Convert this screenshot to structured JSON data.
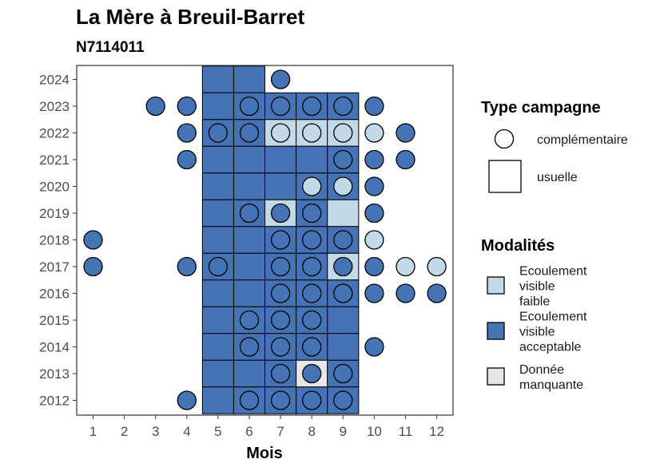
{
  "chart_data": {
    "type": "heatmap",
    "title": "La Mère à Breuil-Barret",
    "subtitle": "N7114011",
    "xlabel": "Mois",
    "ylabel": "",
    "x_ticks": [
      "1",
      "2",
      "3",
      "4",
      "5",
      "6",
      "7",
      "8",
      "9",
      "10",
      "11",
      "12"
    ],
    "y_ticks": [
      "2012",
      "2013",
      "2014",
      "2015",
      "2016",
      "2017",
      "2018",
      "2019",
      "2020",
      "2021",
      "2022",
      "2023",
      "2024"
    ],
    "colors": {
      "faible": "#c1d9e9",
      "acceptable": "#4474b6",
      "manquante": "#e6e6e6"
    },
    "legend_campagne": {
      "title": "Type campagne",
      "items": [
        {
          "shape": "circle",
          "label": "complémentaire"
        },
        {
          "shape": "square",
          "label": "usuelle"
        }
      ]
    },
    "legend_modalites": {
      "title": "Modalités",
      "items": [
        {
          "key": "faible",
          "label": [
            "Ecoulement",
            "visible",
            "faible"
          ]
        },
        {
          "key": "acceptable",
          "label": [
            "Ecoulement",
            "visible",
            "acceptable"
          ]
        },
        {
          "key": "manquante",
          "label": [
            "Donnée",
            "manquante"
          ]
        }
      ]
    },
    "usuelle": [
      {
        "year": 2024,
        "month": 5,
        "m": "acceptable"
      },
      {
        "year": 2024,
        "month": 6,
        "m": "acceptable"
      },
      {
        "year": 2023,
        "month": 5,
        "m": "acceptable"
      },
      {
        "year": 2023,
        "month": 6,
        "m": "acceptable"
      },
      {
        "year": 2023,
        "month": 7,
        "m": "acceptable"
      },
      {
        "year": 2023,
        "month": 8,
        "m": "acceptable"
      },
      {
        "year": 2023,
        "month": 9,
        "m": "acceptable"
      },
      {
        "year": 2022,
        "month": 5,
        "m": "acceptable"
      },
      {
        "year": 2022,
        "month": 6,
        "m": "acceptable"
      },
      {
        "year": 2022,
        "month": 7,
        "m": "faible"
      },
      {
        "year": 2022,
        "month": 8,
        "m": "faible"
      },
      {
        "year": 2022,
        "month": 9,
        "m": "faible"
      },
      {
        "year": 2021,
        "month": 5,
        "m": "acceptable"
      },
      {
        "year": 2021,
        "month": 6,
        "m": "acceptable"
      },
      {
        "year": 2021,
        "month": 7,
        "m": "acceptable"
      },
      {
        "year": 2021,
        "month": 8,
        "m": "acceptable"
      },
      {
        "year": 2021,
        "month": 9,
        "m": "acceptable"
      },
      {
        "year": 2020,
        "month": 5,
        "m": "acceptable"
      },
      {
        "year": 2020,
        "month": 6,
        "m": "acceptable"
      },
      {
        "year": 2020,
        "month": 7,
        "m": "acceptable"
      },
      {
        "year": 2020,
        "month": 8,
        "m": "acceptable"
      },
      {
        "year": 2020,
        "month": 9,
        "m": "acceptable"
      },
      {
        "year": 2019,
        "month": 5,
        "m": "acceptable"
      },
      {
        "year": 2019,
        "month": 6,
        "m": "acceptable"
      },
      {
        "year": 2019,
        "month": 7,
        "m": "faible"
      },
      {
        "year": 2019,
        "month": 8,
        "m": "acceptable"
      },
      {
        "year": 2019,
        "month": 9,
        "m": "faible"
      },
      {
        "year": 2018,
        "month": 5,
        "m": "acceptable"
      },
      {
        "year": 2018,
        "month": 6,
        "m": "acceptable"
      },
      {
        "year": 2018,
        "month": 7,
        "m": "acceptable"
      },
      {
        "year": 2018,
        "month": 8,
        "m": "acceptable"
      },
      {
        "year": 2018,
        "month": 9,
        "m": "acceptable"
      },
      {
        "year": 2017,
        "month": 5,
        "m": "acceptable"
      },
      {
        "year": 2017,
        "month": 6,
        "m": "acceptable"
      },
      {
        "year": 2017,
        "month": 7,
        "m": "acceptable"
      },
      {
        "year": 2017,
        "month": 8,
        "m": "acceptable"
      },
      {
        "year": 2017,
        "month": 9,
        "m": "faible"
      },
      {
        "year": 2016,
        "month": 5,
        "m": "acceptable"
      },
      {
        "year": 2016,
        "month": 6,
        "m": "acceptable"
      },
      {
        "year": 2016,
        "month": 7,
        "m": "acceptable"
      },
      {
        "year": 2016,
        "month": 8,
        "m": "acceptable"
      },
      {
        "year": 2016,
        "month": 9,
        "m": "acceptable"
      },
      {
        "year": 2015,
        "month": 5,
        "m": "acceptable"
      },
      {
        "year": 2015,
        "month": 6,
        "m": "acceptable"
      },
      {
        "year": 2015,
        "month": 7,
        "m": "acceptable"
      },
      {
        "year": 2015,
        "month": 8,
        "m": "acceptable"
      },
      {
        "year": 2015,
        "month": 9,
        "m": "acceptable"
      },
      {
        "year": 2014,
        "month": 5,
        "m": "acceptable"
      },
      {
        "year": 2014,
        "month": 6,
        "m": "acceptable"
      },
      {
        "year": 2014,
        "month": 7,
        "m": "acceptable"
      },
      {
        "year": 2014,
        "month": 8,
        "m": "acceptable"
      },
      {
        "year": 2014,
        "month": 9,
        "m": "acceptable"
      },
      {
        "year": 2013,
        "month": 5,
        "m": "acceptable"
      },
      {
        "year": 2013,
        "month": 6,
        "m": "acceptable"
      },
      {
        "year": 2013,
        "month": 7,
        "m": "acceptable"
      },
      {
        "year": 2013,
        "month": 8,
        "m": "manquante"
      },
      {
        "year": 2013,
        "month": 9,
        "m": "acceptable"
      },
      {
        "year": 2012,
        "month": 5,
        "m": "acceptable"
      },
      {
        "year": 2012,
        "month": 6,
        "m": "acceptable"
      },
      {
        "year": 2012,
        "month": 7,
        "m": "acceptable"
      },
      {
        "year": 2012,
        "month": 8,
        "m": "acceptable"
      },
      {
        "year": 2012,
        "month": 9,
        "m": "acceptable"
      }
    ],
    "complementaire": [
      {
        "year": 2024,
        "month": 7,
        "m": "acceptable"
      },
      {
        "year": 2023,
        "month": 3,
        "m": "acceptable"
      },
      {
        "year": 2023,
        "month": 4,
        "m": "acceptable"
      },
      {
        "year": 2023,
        "month": 6,
        "m": "acceptable"
      },
      {
        "year": 2023,
        "month": 7,
        "m": "acceptable"
      },
      {
        "year": 2023,
        "month": 8,
        "m": "acceptable"
      },
      {
        "year": 2023,
        "month": 9,
        "m": "acceptable"
      },
      {
        "year": 2023,
        "month": 10,
        "m": "acceptable"
      },
      {
        "year": 2022,
        "month": 4,
        "m": "acceptable"
      },
      {
        "year": 2022,
        "month": 5,
        "m": "acceptable"
      },
      {
        "year": 2022,
        "month": 6,
        "m": "acceptable"
      },
      {
        "year": 2022,
        "month": 7,
        "m": "faible"
      },
      {
        "year": 2022,
        "month": 8,
        "m": "faible"
      },
      {
        "year": 2022,
        "month": 9,
        "m": "faible"
      },
      {
        "year": 2022,
        "month": 10,
        "m": "faible"
      },
      {
        "year": 2022,
        "month": 11,
        "m": "acceptable"
      },
      {
        "year": 2021,
        "month": 4,
        "m": "acceptable"
      },
      {
        "year": 2021,
        "month": 9,
        "m": "acceptable"
      },
      {
        "year": 2021,
        "month": 10,
        "m": "acceptable"
      },
      {
        "year": 2021,
        "month": 11,
        "m": "acceptable"
      },
      {
        "year": 2020,
        "month": 8,
        "m": "faible"
      },
      {
        "year": 2020,
        "month": 9,
        "m": "faible"
      },
      {
        "year": 2020,
        "month": 10,
        "m": "acceptable"
      },
      {
        "year": 2019,
        "month": 6,
        "m": "acceptable"
      },
      {
        "year": 2019,
        "month": 7,
        "m": "acceptable"
      },
      {
        "year": 2019,
        "month": 8,
        "m": "acceptable"
      },
      {
        "year": 2019,
        "month": 10,
        "m": "acceptable"
      },
      {
        "year": 2018,
        "month": 1,
        "m": "acceptable"
      },
      {
        "year": 2018,
        "month": 7,
        "m": "acceptable"
      },
      {
        "year": 2018,
        "month": 8,
        "m": "acceptable"
      },
      {
        "year": 2018,
        "month": 9,
        "m": "acceptable"
      },
      {
        "year": 2018,
        "month": 10,
        "m": "faible"
      },
      {
        "year": 2017,
        "month": 1,
        "m": "acceptable"
      },
      {
        "year": 2017,
        "month": 4,
        "m": "acceptable"
      },
      {
        "year": 2017,
        "month": 5,
        "m": "acceptable"
      },
      {
        "year": 2017,
        "month": 7,
        "m": "acceptable"
      },
      {
        "year": 2017,
        "month": 8,
        "m": "acceptable"
      },
      {
        "year": 2017,
        "month": 9,
        "m": "acceptable"
      },
      {
        "year": 2017,
        "month": 10,
        "m": "acceptable"
      },
      {
        "year": 2017,
        "month": 11,
        "m": "faible"
      },
      {
        "year": 2017,
        "month": 12,
        "m": "faible"
      },
      {
        "year": 2016,
        "month": 7,
        "m": "acceptable"
      },
      {
        "year": 2016,
        "month": 8,
        "m": "acceptable"
      },
      {
        "year": 2016,
        "month": 9,
        "m": "acceptable"
      },
      {
        "year": 2016,
        "month": 10,
        "m": "acceptable"
      },
      {
        "year": 2016,
        "month": 11,
        "m": "acceptable"
      },
      {
        "year": 2016,
        "month": 12,
        "m": "acceptable"
      },
      {
        "year": 2015,
        "month": 6,
        "m": "acceptable"
      },
      {
        "year": 2015,
        "month": 7,
        "m": "acceptable"
      },
      {
        "year": 2015,
        "month": 8,
        "m": "acceptable"
      },
      {
        "year": 2014,
        "month": 6,
        "m": "acceptable"
      },
      {
        "year": 2014,
        "month": 7,
        "m": "acceptable"
      },
      {
        "year": 2014,
        "month": 8,
        "m": "acceptable"
      },
      {
        "year": 2014,
        "month": 10,
        "m": "acceptable"
      },
      {
        "year": 2013,
        "month": 7,
        "m": "acceptable"
      },
      {
        "year": 2013,
        "month": 8,
        "m": "acceptable"
      },
      {
        "year": 2013,
        "month": 9,
        "m": "acceptable"
      },
      {
        "year": 2012,
        "month": 4,
        "m": "acceptable"
      },
      {
        "year": 2012,
        "month": 6,
        "m": "acceptable"
      },
      {
        "year": 2012,
        "month": 7,
        "m": "acceptable"
      },
      {
        "year": 2012,
        "month": 8,
        "m": "acceptable"
      },
      {
        "year": 2012,
        "month": 9,
        "m": "acceptable"
      }
    ]
  }
}
